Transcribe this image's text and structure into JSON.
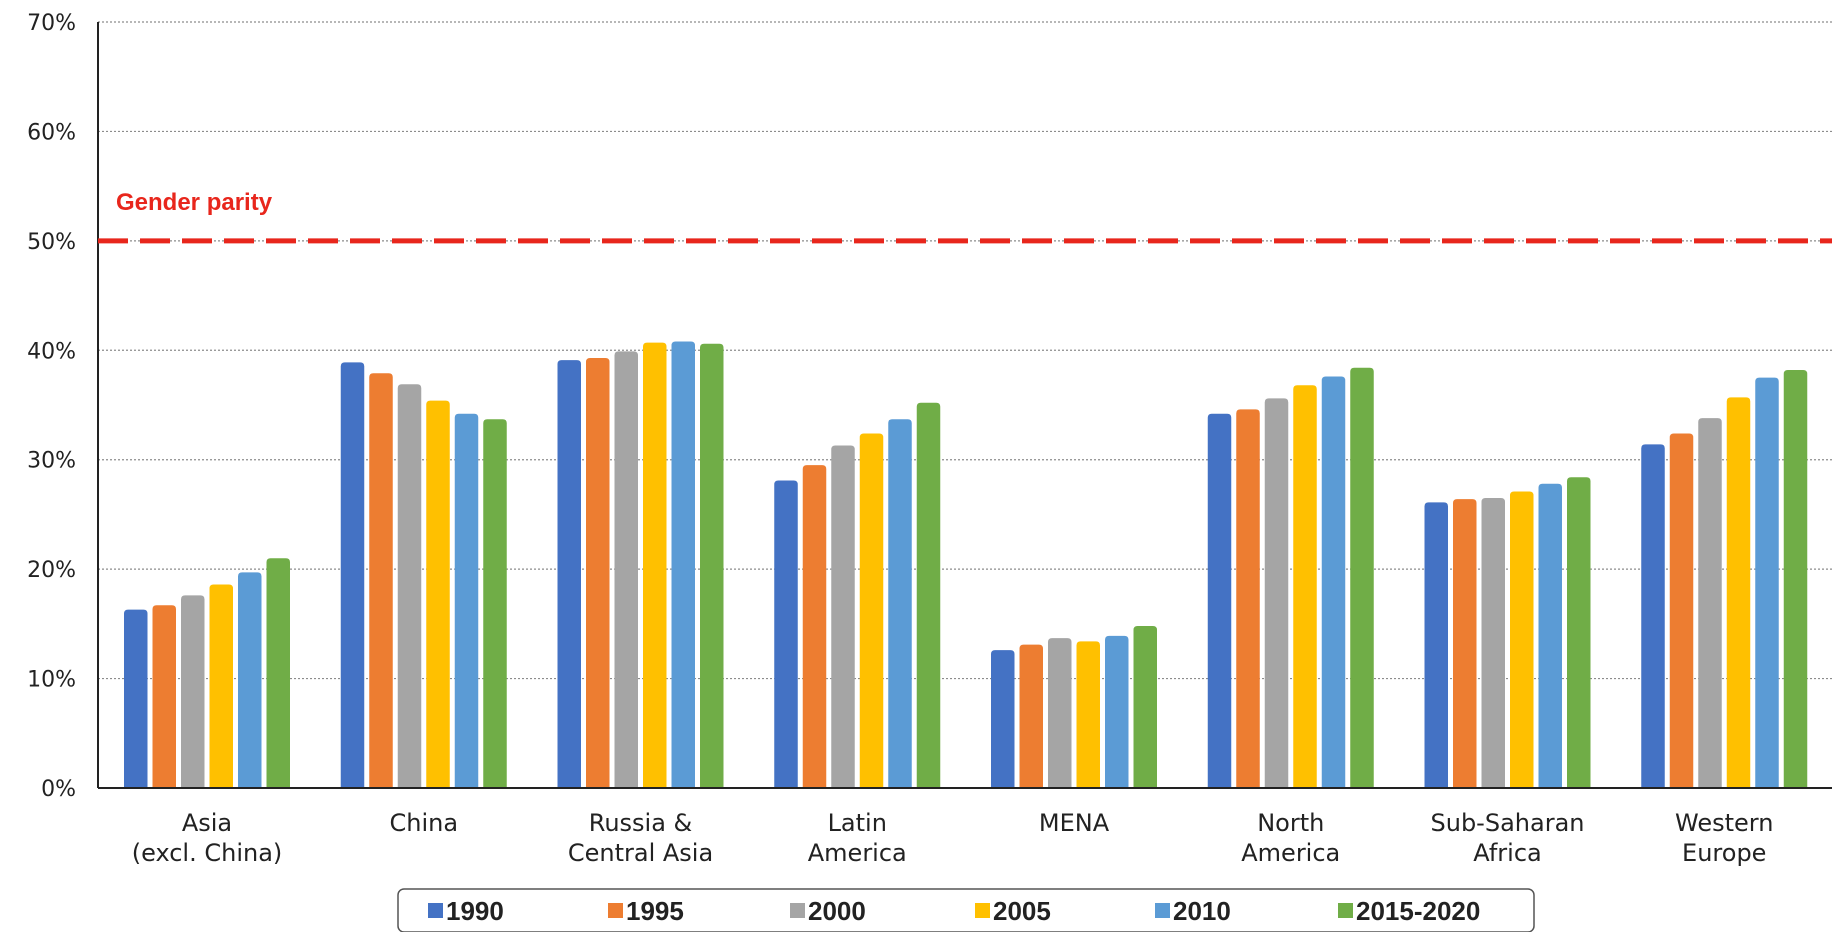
{
  "chart_data": {
    "type": "bar",
    "title": "",
    "xlabel": "",
    "ylabel": "",
    "ylim": [
      0,
      70
    ],
    "ytick_labels": [
      "0%",
      "10%",
      "20%",
      "30%",
      "40%",
      "50%",
      "60%",
      "70%"
    ],
    "ytick_values": [
      0,
      10,
      20,
      30,
      40,
      50,
      60,
      70
    ],
    "grid": "horizontal-dotted",
    "legend_position": "bottom-center",
    "categories": [
      [
        "Asia",
        "(excl. China)"
      ],
      [
        "China"
      ],
      [
        "Russia &",
        "Central Asia"
      ],
      [
        "Latin",
        "America"
      ],
      [
        "MENA"
      ],
      [
        "North",
        "America"
      ],
      [
        "Sub-Saharan",
        "Africa"
      ],
      [
        "Western",
        "Europe"
      ]
    ],
    "series": [
      {
        "name": "1990",
        "color": "#4472c4",
        "values": [
          16.3,
          38.9,
          39.1,
          28.1,
          12.6,
          34.2,
          26.1,
          31.4
        ]
      },
      {
        "name": "1995",
        "color": "#ed7d31",
        "values": [
          16.7,
          37.9,
          39.3,
          29.5,
          13.1,
          34.6,
          26.4,
          32.4
        ]
      },
      {
        "name": "2000",
        "color": "#a5a5a5",
        "values": [
          17.6,
          36.9,
          39.9,
          31.3,
          13.7,
          35.6,
          26.5,
          33.8
        ]
      },
      {
        "name": "2005",
        "color": "#ffc000",
        "values": [
          18.6,
          35.4,
          40.7,
          32.4,
          13.4,
          36.8,
          27.1,
          35.7
        ]
      },
      {
        "name": "2010",
        "color": "#5b9bd5",
        "values": [
          19.7,
          34.2,
          40.8,
          33.7,
          13.9,
          37.6,
          27.8,
          37.5
        ]
      },
      {
        "name": "2015-2020",
        "color": "#70ad47",
        "values": [
          21.0,
          33.7,
          40.6,
          35.2,
          14.8,
          38.4,
          28.4,
          38.2
        ]
      }
    ],
    "reference_line": {
      "value": 50,
      "label": "Gender parity",
      "color": "#e8261c"
    }
  }
}
